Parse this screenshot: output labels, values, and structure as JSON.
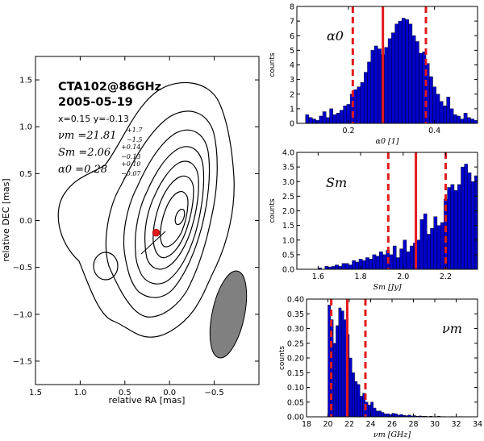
{
  "contour_panel": {
    "title_source": "CTA102@86GHz",
    "title_date": "2005-05-19",
    "position_line": "x=0.15 y=-0.13",
    "nu_label": "νm =21.81",
    "nu_sup": "+1.7",
    "nu_sub": "−1.5",
    "s_label": "Sm =2.06",
    "s_sup": "+0.14",
    "s_sub": "−0.13",
    "alpha_label": "α0 =0.28",
    "alpha_sup": "+0.10",
    "alpha_sub": "−0.07",
    "xlabel": "relative RA [mas]",
    "ylabel": "relative DEC [mas]",
    "xticks": [
      "1.5",
      "1.0",
      "0.5",
      "0.0",
      "−0.5"
    ],
    "yticks": [
      "1.5",
      "1.0",
      "0.5",
      "0.0",
      "−0.5",
      "−1.0",
      "−1.5"
    ],
    "marker": {
      "x": 0.15,
      "y": -0.13
    },
    "colors": {
      "marker": "#e31a1c",
      "beam": "#808080"
    }
  },
  "chart_data": [
    {
      "type": "bar",
      "panel_label": "α0",
      "xlabel": "α0 [1]",
      "ylabel": "counts",
      "xlim": [
        0.08,
        0.5
      ],
      "ylim": [
        0,
        8
      ],
      "xticks": [
        "0.2",
        "0.4"
      ],
      "yticks": [
        "0",
        "1",
        "2",
        "3",
        "4",
        "5",
        "6",
        "7",
        "8"
      ],
      "bin_start": 0.1,
      "bin_width": 0.008,
      "values": [
        0.6,
        0.4,
        0.3,
        0.2,
        0.5,
        0.8,
        0.4,
        1.0,
        0.6,
        0.7,
        0.9,
        1.2,
        1.3,
        2.0,
        2.3,
        2.5,
        2.8,
        3.5,
        4.2,
        5.0,
        5.3,
        5.1,
        4.7,
        5.2,
        5.8,
        6.2,
        6.8,
        7.0,
        7.2,
        7.1,
        6.8,
        6.0,
        5.6,
        4.8,
        4.9,
        4.1,
        3.2,
        2.5,
        2.0,
        1.5,
        1.2,
        1.8,
        1.0,
        0.6,
        0.5,
        0.3,
        0.7,
        0.4,
        0.3,
        0.2
      ],
      "median": 0.28,
      "lower": 0.21,
      "upper": 0.38,
      "colors": {
        "bar": "#0000cd",
        "line": "#e31a1c"
      }
    },
    {
      "type": "bar",
      "panel_label": "Sm",
      "xlabel": "Sm [Jy]",
      "ylabel": "counts",
      "xlim": [
        1.5,
        2.35
      ],
      "ylim": [
        0,
        4
      ],
      "xticks": [
        "1.6",
        "1.8",
        "2.0",
        "2.2"
      ],
      "yticks": [
        "0.0",
        "0.5",
        "1.0",
        "1.5",
        "2.0",
        "2.5",
        "3.0",
        "3.5",
        "4.0"
      ],
      "bin_start": 1.6,
      "bin_width": 0.016,
      "values": [
        0.05,
        0.0,
        0.1,
        0.08,
        0.1,
        0.15,
        0.1,
        0.2,
        0.2,
        0.15,
        0.3,
        0.25,
        0.35,
        0.3,
        0.4,
        0.35,
        0.5,
        0.45,
        0.6,
        0.5,
        0.65,
        0.5,
        0.8,
        0.4,
        0.7,
        1.0,
        0.6,
        0.8,
        0.9,
        1.0,
        1.7,
        1.9,
        1.2,
        1.4,
        1.8,
        1.5,
        1.6,
        2.4,
        2.8,
        2.9,
        2.7,
        2.9,
        3.5,
        3.6,
        3.3,
        3.0,
        3.2,
        2.8,
        2.6,
        2.5,
        2.2,
        1.9,
        1.5,
        1.3,
        1.0,
        0.6,
        0.7,
        0.3,
        0.2,
        0.1,
        0.2,
        0.0,
        0.05,
        0.1,
        0.02
      ],
      "median": 2.06,
      "lower": 1.93,
      "upper": 2.2,
      "colors": {
        "bar": "#0000cd",
        "line": "#e31a1c"
      }
    },
    {
      "type": "bar",
      "panel_label": "νm",
      "xlabel": "νm [GHz]",
      "ylabel": "counts",
      "xlim": [
        18,
        34
      ],
      "ylim": [
        0,
        0.4
      ],
      "xticks": [
        "18",
        "20",
        "22",
        "24",
        "26",
        "28",
        "30",
        "32",
        "34"
      ],
      "yticks": [
        "0.00",
        "0.05",
        "0.10",
        "0.15",
        "0.20",
        "0.25",
        "0.30",
        "0.35",
        "0.40"
      ],
      "bin_start": 20.0,
      "bin_width": 0.25,
      "values": [
        0.38,
        0.33,
        0.25,
        0.31,
        0.37,
        0.36,
        0.33,
        0.28,
        0.2,
        0.15,
        0.12,
        0.11,
        0.07,
        0.08,
        0.05,
        0.04,
        0.05,
        0.03,
        0.02,
        0.02,
        0.015,
        0.01,
        0.01,
        0.008,
        0.012,
        0.01,
        0.006,
        0.008,
        0.005,
        0.004,
        0.006,
        0.003,
        0.004,
        0.002,
        0.003,
        0.002,
        0.002,
        0.001,
        0.002,
        0.001,
        0.001,
        0.002,
        0.001,
        0.001,
        0.0,
        0.0,
        0.001,
        0.0,
        0.0,
        0.001,
        0.0,
        0.0
      ],
      "median": 21.81,
      "lower": 20.31,
      "upper": 23.51,
      "colors": {
        "bar": "#0000cd",
        "line": "#e31a1c"
      }
    }
  ]
}
